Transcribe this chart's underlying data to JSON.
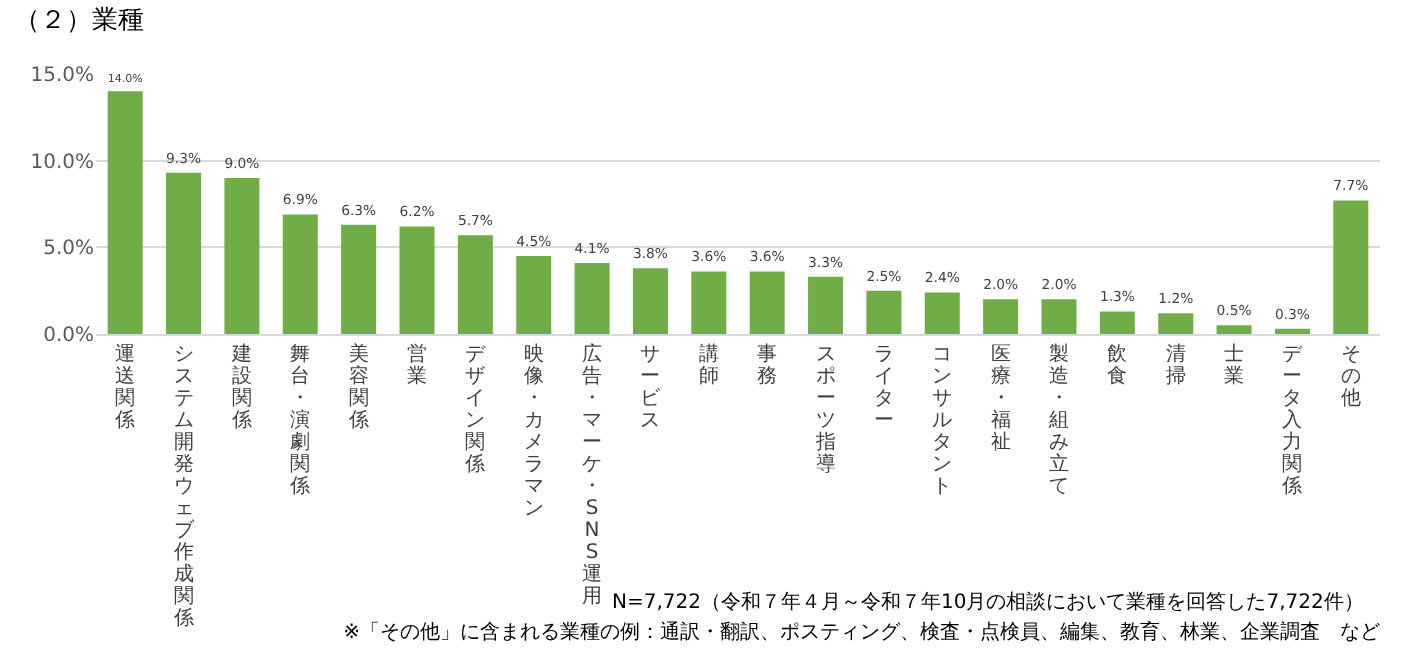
{
  "chart_data": {
    "type": "bar",
    "title": "（２）業種",
    "categories": [
      "運送関係",
      "システム開発ウェブ作成関係",
      "建設関係",
      "舞台・演劇関係",
      "美容関係",
      "営業",
      "デザイン関係",
      "映像・カメラマン",
      "広告・マーケ・SNS運用",
      "サービス",
      "講師",
      "事務",
      "スポーツ指導",
      "ライター",
      "コンサルタント",
      "医療・福祉",
      "製造・組み立て",
      "飲食",
      "清掃",
      "士業",
      "データ入力関係",
      "その他"
    ],
    "values": [
      14.0,
      9.3,
      9.0,
      6.9,
      6.3,
      6.2,
      5.7,
      4.5,
      4.1,
      3.8,
      3.6,
      3.6,
      3.3,
      2.5,
      2.4,
      2.0,
      2.0,
      1.3,
      1.2,
      0.5,
      0.3,
      7.7
    ],
    "value_labels": [
      "14.0%",
      "9.3%",
      "9.0%",
      "6.9%",
      "6.3%",
      "6.2%",
      "5.7%",
      "4.5%",
      "4.1%",
      "3.8%",
      "3.6%",
      "3.6%",
      "3.3%",
      "2.5%",
      "2.4%",
      "2.0%",
      "2.0%",
      "1.3%",
      "1.2%",
      "0.5%",
      "0.3%",
      "7.7%"
    ],
    "color": "#70ad47",
    "ylim": [
      0,
      15
    ],
    "yticks": [
      {
        "value": 0,
        "label": "0.0%"
      },
      {
        "value": 5,
        "label": "5.0%"
      },
      {
        "value": 10,
        "label": "10.0%"
      },
      {
        "value": 15,
        "label": "15.0%"
      }
    ],
    "grid": "y",
    "legend": false,
    "annotations": [
      "N=7,722（令和７年４月～令和７年10月の相談において業種を回答した7,722件）",
      "※「その他」に含まれる業種の例：通訳・翻訳、ポスティング、検査・点検員、編集、教育、林業、企業調査　など"
    ]
  }
}
